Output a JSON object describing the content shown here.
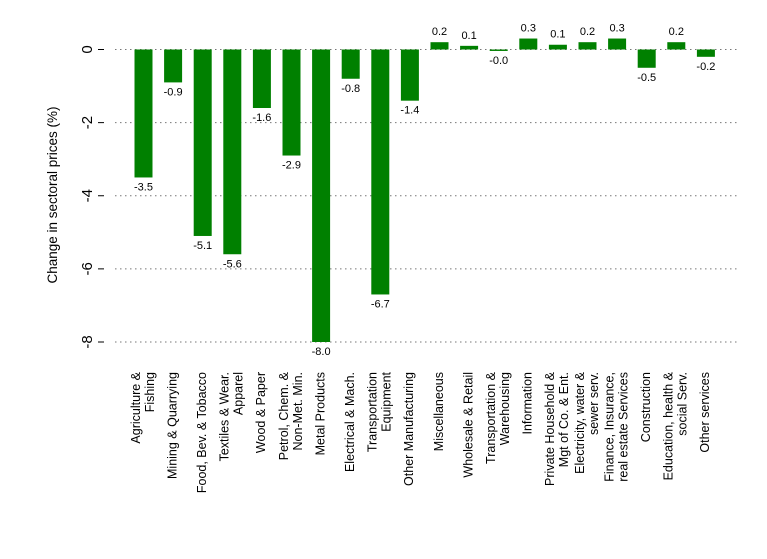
{
  "chart_data": {
    "type": "bar",
    "ylabel": "Change in sectoral prices (%)",
    "xlabel": "",
    "ylim": [
      -8.4,
      0.65
    ],
    "yticks": [
      0,
      -2,
      -4,
      -6,
      -8
    ],
    "ytick_labels": [
      "0",
      "-2",
      "-4",
      "-6",
      "-8"
    ],
    "grid": true,
    "bar_color": "#008000",
    "categories": [
      [
        "Agriculture &",
        "Fishing"
      ],
      [
        "Mining & Quarrying"
      ],
      [
        "Food, Bev. & Tobacco"
      ],
      [
        "Textiles & Wear.",
        "Apparel"
      ],
      [
        "Wood & Paper"
      ],
      [
        "Petrol, Chem. &",
        "Non-Met. Min."
      ],
      [
        "Metal Products"
      ],
      [
        "Electrical & Mach."
      ],
      [
        "Transportation",
        "Equipment"
      ],
      [
        "Other Manufacturing"
      ],
      [
        "Miscellaneous"
      ],
      [
        "Wholesale & Retail"
      ],
      [
        "Transportation &",
        "Warehousing"
      ],
      [
        "Information"
      ],
      [
        "Private Household &",
        "Mgt of Co. & Ent."
      ],
      [
        "Electricity, water &",
        "sewer serv."
      ],
      [
        "Finance, Insurance,",
        "real estate Services"
      ],
      [
        "Construction"
      ],
      [
        "Education, health &",
        "social Serv."
      ],
      [
        "Other services"
      ]
    ],
    "values": [
      -3.5,
      -0.9,
      -5.1,
      -5.6,
      -1.6,
      -2.9,
      -8.0,
      -0.8,
      -6.7,
      -1.4,
      0.2,
      0.1,
      -0.04,
      0.3,
      0.13,
      0.2,
      0.3,
      -0.5,
      0.2,
      -0.2
    ],
    "value_labels": [
      "-3.5",
      "-0.9",
      "-5.1",
      "-5.6",
      "-1.6",
      "-2.9",
      "-8.0",
      "-0.8",
      "-6.7",
      "-1.4",
      "0.2",
      "0.1",
      "-0.0",
      "0.3",
      "0.1",
      "0.2",
      "0.3",
      "-0.5",
      "0.2",
      "-0.2"
    ]
  }
}
